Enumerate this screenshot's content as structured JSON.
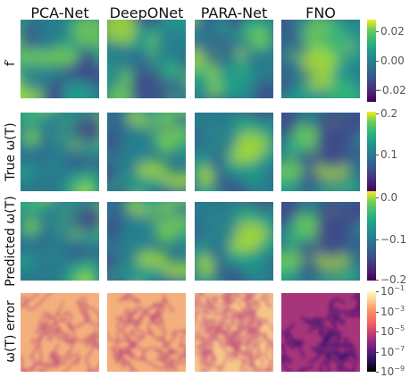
{
  "columns": [
    "PCA-Net",
    "DeepONet",
    "PARA-Net",
    "FNO"
  ],
  "rows": [
    {
      "label": "f′",
      "colormap": "viridis",
      "colorbar": {
        "scale": "linear",
        "range": [
          -0.028,
          0.028
        ],
        "ticks": [
          "0.02",
          "0.00",
          "−0.02"
        ],
        "tick_values": [
          0.02,
          0.0,
          -0.02
        ]
      }
    },
    {
      "label": "True ω(T)",
      "colormap": "viridis",
      "colorbar": {
        "scale": "linear",
        "range": [
          -0.2,
          0.2
        ],
        "ticks": [
          "0.2",
          "0.1",
          "0.0",
          "−0.1"
        ],
        "tick_values": [
          0.2,
          0.1,
          0.0,
          -0.1
        ]
      }
    },
    {
      "label": "Predicted ω(T)",
      "colormap": "viridis",
      "colorbar": {
        "scale": "linear",
        "range": [
          -0.2,
          0.2
        ],
        "ticks": [
          "0.0",
          "−0.1",
          "−0.2"
        ],
        "tick_values": [
          0.0,
          -0.1,
          -0.2
        ]
      }
    },
    {
      "label": "ω(T) error",
      "colormap": "magma",
      "colorbar": {
        "scale": "log",
        "range": [
          -9,
          -1
        ],
        "ticks": [
          [
            "10",
            "−1"
          ],
          [
            "10",
            "−3"
          ],
          [
            "10",
            "−5"
          ],
          [
            "10",
            "−7"
          ],
          [
            "10",
            "−9"
          ]
        ],
        "tick_values": [
          -1,
          -3,
          -5,
          -7,
          -9
        ]
      }
    }
  ]
}
